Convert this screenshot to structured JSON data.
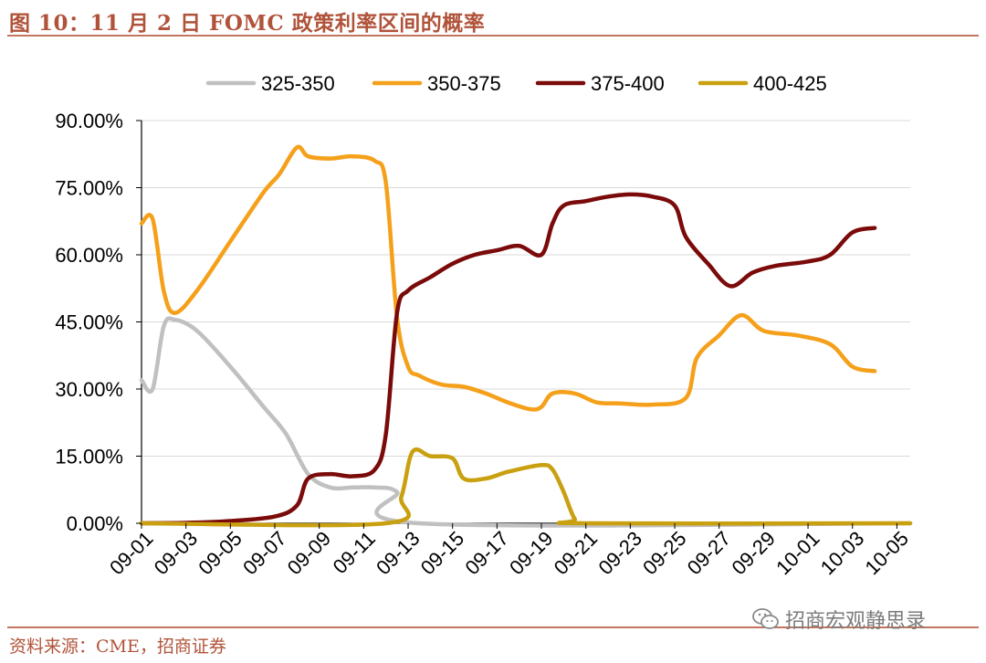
{
  "figure": {
    "title": "图 10：11 月 2 日 FOMC 政策利率区间的概率",
    "source": "资料来源：CME，招商证券",
    "watermark": "招商宏观静思录",
    "watermark_icon": "wechat-icon"
  },
  "colors": {
    "accent": "#b0533a",
    "rule": "#c3765f",
    "grid": "#d9d9d9"
  },
  "chart_data": {
    "type": "line",
    "title": "",
    "xlabel": "",
    "ylabel": "",
    "ylim": [
      0,
      90
    ],
    "yticks": [
      0,
      15,
      30,
      45,
      60,
      75,
      90
    ],
    "ytick_labels": [
      "0.00%",
      "15.00%",
      "30.00%",
      "45.00%",
      "60.00%",
      "75.00%",
      "90.00%"
    ],
    "xlim": [
      0,
      34.6
    ],
    "xticks": [
      0,
      2,
      4,
      6,
      8,
      10,
      12,
      14,
      16,
      18,
      20,
      22,
      24,
      26,
      28,
      30,
      32,
      34
    ],
    "xtick_labels": [
      "09-01",
      "09-03",
      "09-05",
      "09-07",
      "09-09",
      "09-11",
      "09-13",
      "09-15",
      "09-17",
      "09-19",
      "09-21",
      "09-23",
      "09-25",
      "09-27",
      "09-29",
      "10-01",
      "10-03",
      "10-05"
    ],
    "legend_position": "top",
    "grid": "horizontal",
    "series": [
      {
        "name": "325-350",
        "color": "#c0c0c0",
        "points": [
          [
            0,
            32
          ],
          [
            0.5,
            30
          ],
          [
            1,
            44
          ],
          [
            1.5,
            45.5
          ],
          [
            2.5,
            43
          ],
          [
            4,
            35
          ],
          [
            5.5,
            26
          ],
          [
            6.5,
            20
          ],
          [
            7.5,
            11
          ],
          [
            8.5,
            8
          ],
          [
            9.5,
            8
          ],
          [
            10.5,
            8
          ],
          [
            11.5,
            7
          ],
          [
            12.5,
            0
          ],
          [
            34.6,
            0
          ]
        ]
      },
      {
        "name": "350-375",
        "color": "#f5a01a",
        "points": [
          [
            0,
            67
          ],
          [
            0.5,
            68
          ],
          [
            1,
            52
          ],
          [
            1.5,
            47
          ],
          [
            2.5,
            52
          ],
          [
            4,
            63
          ],
          [
            5.5,
            74
          ],
          [
            6.2,
            78
          ],
          [
            7,
            84
          ],
          [
            7.5,
            82
          ],
          [
            8.5,
            81.5
          ],
          [
            9.5,
            82
          ],
          [
            10.5,
            81
          ],
          [
            11,
            76
          ],
          [
            11.5,
            46
          ],
          [
            12,
            35
          ],
          [
            12.5,
            33
          ],
          [
            13.5,
            31
          ],
          [
            14.5,
            30.5
          ],
          [
            15.5,
            29
          ],
          [
            16.5,
            27
          ],
          [
            17.5,
            25.5
          ],
          [
            18,
            26
          ],
          [
            18.5,
            29
          ],
          [
            19.5,
            29
          ],
          [
            20.5,
            27
          ],
          [
            21.5,
            26.8
          ],
          [
            23,
            26.5
          ],
          [
            24.5,
            28
          ],
          [
            25,
            37
          ],
          [
            26,
            42
          ],
          [
            27,
            46.5
          ],
          [
            28,
            43
          ],
          [
            29.5,
            42
          ],
          [
            31,
            40
          ],
          [
            32,
            35
          ],
          [
            33,
            34
          ]
        ]
      },
      {
        "name": "375-400",
        "color": "#7b0a0a",
        "points": [
          [
            0,
            0
          ],
          [
            2,
            0.1
          ],
          [
            4,
            0.5
          ],
          [
            6,
            1.5
          ],
          [
            7,
            4
          ],
          [
            7.5,
            10
          ],
          [
            8.5,
            11
          ],
          [
            9.5,
            10.5
          ],
          [
            10.5,
            12
          ],
          [
            11,
            20
          ],
          [
            11.5,
            47
          ],
          [
            12,
            52
          ],
          [
            13,
            55
          ],
          [
            14,
            58
          ],
          [
            15,
            60
          ],
          [
            16,
            61
          ],
          [
            17,
            62
          ],
          [
            18,
            60
          ],
          [
            18.5,
            67
          ],
          [
            19,
            71
          ],
          [
            20,
            72
          ],
          [
            21,
            73
          ],
          [
            22,
            73.5
          ],
          [
            23,
            73
          ],
          [
            24,
            71
          ],
          [
            24.5,
            64
          ],
          [
            25.5,
            58
          ],
          [
            26.5,
            53
          ],
          [
            27.5,
            56
          ],
          [
            28.5,
            57.5
          ],
          [
            30,
            58.5
          ],
          [
            31,
            60
          ],
          [
            32,
            65
          ],
          [
            33,
            66
          ]
        ]
      },
      {
        "name": "400-425",
        "color": "#c9a010",
        "points": [
          [
            0,
            0
          ],
          [
            11,
            0
          ],
          [
            11.7,
            6
          ],
          [
            12.2,
            16
          ],
          [
            13,
            15
          ],
          [
            14,
            14.5
          ],
          [
            14.5,
            10
          ],
          [
            15.5,
            10
          ],
          [
            16.5,
            11.5
          ],
          [
            18,
            13
          ],
          [
            18.5,
            12
          ],
          [
            19,
            7
          ],
          [
            19.5,
            1
          ],
          [
            20,
            0
          ],
          [
            34.6,
            0
          ]
        ]
      }
    ]
  }
}
